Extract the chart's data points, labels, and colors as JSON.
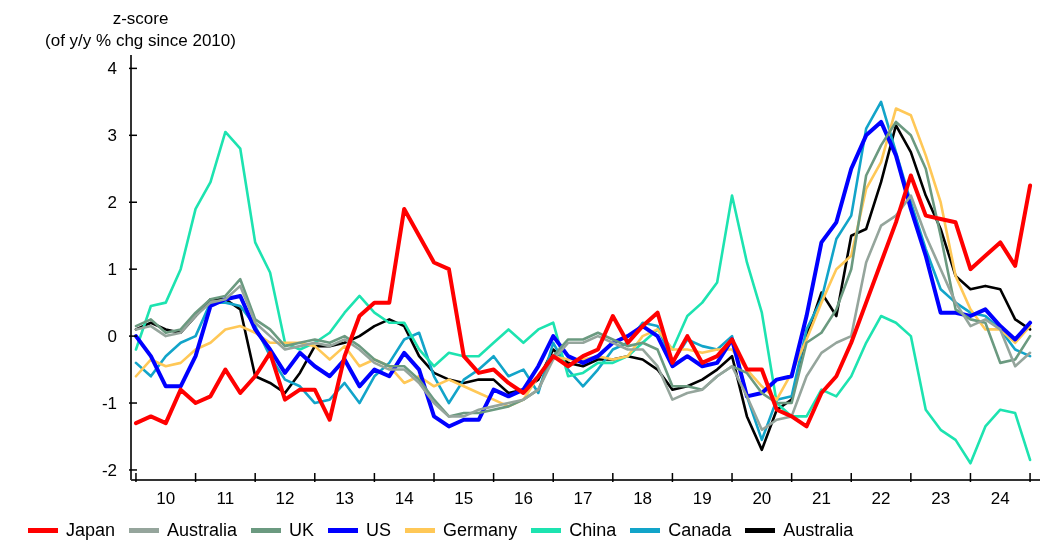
{
  "chart_data": {
    "type": "line",
    "ylabel": "z-score\n(of y/y % chg since 2010)",
    "x": [
      "2010-01",
      "2010-04",
      "2010-07",
      "2010-10",
      "2011-01",
      "2011-04",
      "2011-07",
      "2011-10",
      "2012-01",
      "2012-04",
      "2012-07",
      "2012-10",
      "2013-01",
      "2013-04",
      "2013-07",
      "2013-10",
      "2014-01",
      "2014-04",
      "2014-07",
      "2014-10",
      "2015-01",
      "2015-04",
      "2015-07",
      "2015-10",
      "2016-01",
      "2016-04",
      "2016-07",
      "2016-10",
      "2017-01",
      "2017-04",
      "2017-07",
      "2017-10",
      "2018-01",
      "2018-04",
      "2018-07",
      "2018-10",
      "2019-01",
      "2019-04",
      "2019-07",
      "2019-10",
      "2020-01",
      "2020-04",
      "2020-07",
      "2020-10",
      "2021-01",
      "2021-04",
      "2021-07",
      "2021-10",
      "2022-01",
      "2022-04",
      "2022-07",
      "2022-10",
      "2023-01",
      "2023-04",
      "2023-07",
      "2023-10",
      "2024-01",
      "2024-04",
      "2024-07",
      "2024-10",
      "2025-01"
    ],
    "series": [
      {
        "name": "Japan",
        "color": "#ff0000",
        "values": [
          -1.3,
          -1.2,
          -1.3,
          -0.8,
          -1.0,
          -0.9,
          -0.5,
          -0.85,
          -0.6,
          -0.25,
          -0.95,
          -0.8,
          -0.8,
          -1.25,
          -0.3,
          0.3,
          0.5,
          0.5,
          1.9,
          1.5,
          1.1,
          1.0,
          -0.3,
          -0.55,
          -0.5,
          -0.7,
          -0.85,
          -0.6,
          -0.3,
          -0.45,
          -0.3,
          -0.2,
          0.3,
          -0.1,
          0.15,
          0.35,
          -0.4,
          0.0,
          -0.4,
          -0.3,
          -0.05,
          -0.5,
          -0.5,
          -1.1,
          -1.2,
          -1.35,
          -0.85,
          -0.6,
          -0.1,
          0.5,
          1.1,
          1.7,
          2.4,
          1.8,
          1.75,
          1.7,
          1.0,
          1.2,
          1.4,
          1.05,
          2.25
        ]
      },
      {
        "name": "Australia",
        "color": "#95a59c",
        "values": [
          0.1,
          0.15,
          0.0,
          0.05,
          0.3,
          0.5,
          0.55,
          0.75,
          0.2,
          0.0,
          -0.2,
          -0.15,
          -0.1,
          -0.15,
          -0.05,
          -0.2,
          -0.4,
          -0.5,
          -0.5,
          -0.7,
          -1.0,
          -1.2,
          -1.2,
          -1.1,
          -1.05,
          -1.0,
          -0.95,
          -0.8,
          -0.35,
          -0.1,
          -0.1,
          0.0,
          -0.1,
          -0.2,
          -0.2,
          -0.45,
          -0.95,
          -0.85,
          -0.8,
          -0.6,
          -0.45,
          -0.9,
          -1.4,
          -1.25,
          -1.2,
          -0.6,
          -0.25,
          -0.1,
          0.0,
          1.1,
          1.65,
          1.8,
          2.1,
          1.5,
          1.0,
          0.5,
          0.15,
          0.25,
          0.1,
          -0.45,
          -0.25
        ]
      },
      {
        "name": "UK",
        "color": "#6b9a80",
        "values": [
          0.15,
          0.25,
          0.05,
          0.1,
          0.35,
          0.55,
          0.6,
          0.85,
          0.25,
          0.1,
          -0.15,
          -0.1,
          -0.05,
          -0.1,
          0.0,
          -0.15,
          -0.35,
          -0.45,
          -0.45,
          -0.65,
          -0.95,
          -1.2,
          -1.15,
          -1.15,
          -1.1,
          -1.05,
          -0.95,
          -0.8,
          -0.3,
          -0.05,
          -0.05,
          0.05,
          -0.05,
          -0.15,
          -0.1,
          -0.2,
          -0.75,
          -0.75,
          -0.8,
          -0.6,
          -0.45,
          -0.55,
          -0.85,
          -1.0,
          -1.0,
          -0.1,
          0.05,
          0.4,
          1.0,
          2.4,
          2.85,
          3.2,
          3.0,
          2.5,
          1.5,
          0.4,
          0.25,
          0.2,
          -0.4,
          -0.35,
          0.0
        ]
      },
      {
        "name": "US",
        "color": "#0000ff",
        "values": [
          0.0,
          -0.3,
          -0.75,
          -0.75,
          -0.3,
          0.45,
          0.55,
          0.6,
          0.1,
          -0.2,
          -0.55,
          -0.25,
          -0.45,
          -0.6,
          -0.35,
          -0.75,
          -0.5,
          -0.6,
          -0.25,
          -0.5,
          -1.2,
          -1.35,
          -1.25,
          -1.25,
          -0.8,
          -0.9,
          -0.8,
          -0.45,
          0.0,
          -0.3,
          -0.4,
          -0.3,
          -0.1,
          0.0,
          0.15,
          0.0,
          -0.45,
          -0.3,
          -0.45,
          -0.4,
          -0.05,
          -0.9,
          -0.85,
          -0.65,
          -0.6,
          0.3,
          1.4,
          1.7,
          2.5,
          3.0,
          3.2,
          2.7,
          1.9,
          1.2,
          0.35,
          0.35,
          0.3,
          0.4,
          0.15,
          -0.05,
          0.2
        ]
      },
      {
        "name": "Germany",
        "color": "#ffc857",
        "values": [
          -0.6,
          -0.35,
          -0.45,
          -0.4,
          -0.2,
          -0.1,
          0.1,
          0.15,
          0.05,
          -0.1,
          -0.1,
          -0.1,
          -0.15,
          -0.35,
          -0.15,
          -0.45,
          -0.35,
          -0.45,
          -0.7,
          -0.6,
          -0.75,
          -0.65,
          -0.75,
          -0.85,
          -0.95,
          -1.05,
          -0.95,
          -0.6,
          -0.3,
          -0.35,
          -0.35,
          -0.3,
          -0.35,
          -0.3,
          0.0,
          0.1,
          -0.2,
          -0.2,
          -0.25,
          -0.2,
          -0.2,
          -0.5,
          -0.75,
          -0.95,
          -0.55,
          -0.05,
          0.5,
          1.0,
          1.2,
          2.2,
          2.6,
          3.4,
          3.3,
          2.7,
          2.0,
          0.9,
          0.4,
          0.1,
          0.1,
          -0.1,
          0.15
        ]
      },
      {
        "name": "China",
        "color": "#1de3b0",
        "values": [
          -0.2,
          0.45,
          0.5,
          1.0,
          1.9,
          2.3,
          3.05,
          2.8,
          1.4,
          0.95,
          -0.1,
          -0.2,
          -0.1,
          0.05,
          0.35,
          0.6,
          0.35,
          0.2,
          0.2,
          -0.2,
          -0.45,
          -0.25,
          -0.3,
          -0.3,
          -0.1,
          0.1,
          -0.1,
          0.1,
          0.2,
          -0.6,
          -0.55,
          -0.4,
          -0.4,
          -0.3,
          -0.1,
          0.1,
          -0.2,
          0.3,
          0.5,
          0.8,
          2.1,
          1.1,
          0.35,
          -1.0,
          -1.2,
          -1.2,
          -0.8,
          -0.9,
          -0.6,
          -0.1,
          0.3,
          0.2,
          0.0,
          -1.1,
          -1.4,
          -1.55,
          -1.9,
          -1.35,
          -1.1,
          -1.15,
          -1.85
        ]
      },
      {
        "name": "Canada",
        "color": "#12a4c9",
        "values": [
          -0.4,
          -0.6,
          -0.3,
          -0.1,
          0.0,
          0.5,
          0.5,
          0.45,
          0.15,
          -0.3,
          -0.65,
          -0.75,
          -1.0,
          -0.95,
          -0.7,
          -1.0,
          -0.6,
          -0.4,
          -0.05,
          0.05,
          -0.6,
          -1.0,
          -0.65,
          -0.5,
          -0.3,
          -0.6,
          -0.5,
          -0.85,
          -0.1,
          -0.5,
          -0.75,
          -0.5,
          -0.2,
          -0.1,
          0.2,
          0.15,
          -0.4,
          -0.05,
          -0.15,
          -0.2,
          0.0,
          -0.9,
          -1.55,
          -0.95,
          -0.9,
          0.1,
          0.55,
          1.45,
          1.8,
          3.1,
          3.5,
          2.75,
          2.0,
          1.3,
          0.7,
          0.5,
          0.35,
          0.3,
          0.1,
          -0.2,
          -0.3
        ]
      },
      {
        "name": "Australia",
        "color": "#000000",
        "values": [
          0.1,
          0.2,
          0.1,
          0.05,
          0.3,
          0.55,
          0.55,
          0.4,
          -0.6,
          -0.7,
          -0.85,
          -0.55,
          -0.15,
          -0.15,
          -0.1,
          0.0,
          0.15,
          0.25,
          0.15,
          -0.3,
          -0.55,
          -0.65,
          -0.7,
          -0.65,
          -0.65,
          -0.85,
          -0.8,
          -0.65,
          -0.2,
          -0.4,
          -0.45,
          -0.35,
          -0.35,
          -0.3,
          -0.35,
          -0.5,
          -0.8,
          -0.75,
          -0.65,
          -0.5,
          -0.3,
          -1.2,
          -1.7,
          -1.1,
          -0.95,
          0.0,
          0.65,
          0.3,
          1.5,
          1.6,
          2.3,
          3.15,
          2.75,
          2.1,
          1.6,
          0.9,
          0.7,
          0.75,
          0.7,
          0.25,
          0.1
        ]
      }
    ],
    "xlim": [
      "2009-12",
      "2025-03"
    ],
    "xticks": [
      {
        "value": "2010",
        "label": null
      },
      {
        "value": "2010-07",
        "label": "10"
      },
      {
        "value": "2011",
        "label": null
      },
      {
        "value": "2011-07",
        "label": "11"
      },
      {
        "value": "2012",
        "label": null
      },
      {
        "value": "2012-07",
        "label": "12"
      },
      {
        "value": "2013",
        "label": null
      },
      {
        "value": "2013-07",
        "label": "13"
      },
      {
        "value": "2014",
        "label": null
      },
      {
        "value": "2014-07",
        "label": "14"
      },
      {
        "value": "2015",
        "label": null
      },
      {
        "value": "2015-07",
        "label": "15"
      },
      {
        "value": "2016",
        "label": null
      },
      {
        "value": "2016-07",
        "label": "16"
      },
      {
        "value": "2017",
        "label": null
      },
      {
        "value": "2017-07",
        "label": "17"
      },
      {
        "value": "2018",
        "label": null
      },
      {
        "value": "2018-07",
        "label": "18"
      },
      {
        "value": "2019",
        "label": null
      },
      {
        "value": "2019-07",
        "label": "19"
      },
      {
        "value": "2020",
        "label": null
      },
      {
        "value": "2020-07",
        "label": "20"
      },
      {
        "value": "2021",
        "label": null
      },
      {
        "value": "2021-07",
        "label": "21"
      },
      {
        "value": "2022",
        "label": null
      },
      {
        "value": "2022-07",
        "label": "22"
      },
      {
        "value": "2023",
        "label": null
      },
      {
        "value": "2023-07",
        "label": "23"
      },
      {
        "value": "2024",
        "label": null
      },
      {
        "value": "2024-07",
        "label": "24"
      },
      {
        "value": "2025",
        "label": null
      }
    ],
    "ylim": [
      -2.15,
      4.2
    ],
    "yticks": [
      -2,
      -1,
      0,
      1,
      2,
      3,
      4
    ],
    "legend": "bottom",
    "line_style": "solid"
  }
}
